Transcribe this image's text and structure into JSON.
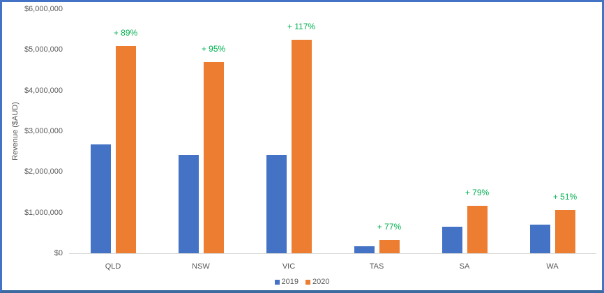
{
  "chart_data": {
    "type": "bar",
    "title": "",
    "xlabel": "",
    "ylabel": "Revenue ($AUD)",
    "ylim": [
      0,
      6000000
    ],
    "yticks": [
      "$0",
      "$1,000,000",
      "$2,000,000",
      "$3,000,000",
      "$4,000,000",
      "$5,000,000",
      "$6,000,000"
    ],
    "grid": false,
    "legend_position": "bottom",
    "categories": [
      "QLD",
      "NSW",
      "VIC",
      "TAS",
      "SA",
      "WA"
    ],
    "series": [
      {
        "name": "2019",
        "color": "#4472C4",
        "values": [
          2680000,
          2420000,
          2410000,
          180000,
          650000,
          700000
        ]
      },
      {
        "name": "2020",
        "color": "#ED7D31",
        "values": [
          5090000,
          4700000,
          5240000,
          320000,
          1170000,
          1060000
        ]
      }
    ],
    "annotations": [
      "+ 89%",
      "+ 95%",
      "+ 117%",
      "+ 77%",
      "+ 79%",
      "+ 51%"
    ],
    "annotation_color": "#00B050"
  },
  "legend": {
    "items": [
      {
        "label": "2019",
        "color": "#4472C4"
      },
      {
        "label": "2020",
        "color": "#ED7D31"
      }
    ]
  }
}
